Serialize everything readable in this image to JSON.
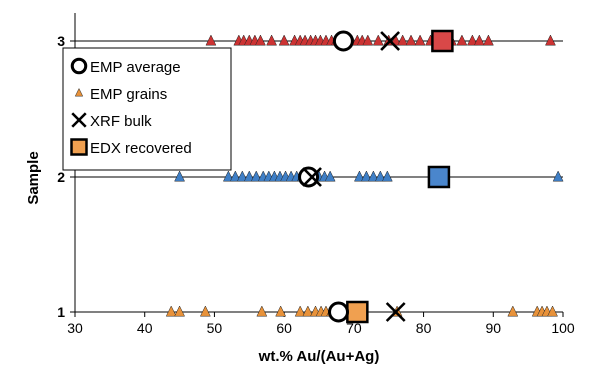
{
  "chart_data": {
    "type": "scatter",
    "xlabel": "wt.% Au/(Au+Ag)",
    "ylabel": "Sample",
    "xlim": [
      30,
      100
    ],
    "xticks": [
      "30",
      "40",
      "50",
      "60",
      "70",
      "80",
      "90",
      "100"
    ],
    "yticks": [
      "1",
      "2",
      "3"
    ],
    "grid": "horizontal",
    "legend_position": "top-left",
    "series": [
      {
        "name": "EMP average",
        "marker": "circle",
        "color": "#000000",
        "points": [
          [
            68.5,
            3
          ],
          [
            63.5,
            2
          ],
          [
            67.8,
            1
          ]
        ]
      },
      {
        "name": "EMP grains",
        "marker": "triangle",
        "colors": {
          "1": "#e8923a",
          "2": "#3f7fc6",
          "3": "#cc3333"
        },
        "points": [
          [
            49.5,
            3
          ],
          [
            53.5,
            3
          ],
          [
            54.2,
            3
          ],
          [
            55,
            3
          ],
          [
            55.8,
            3
          ],
          [
            56.6,
            3
          ],
          [
            58.2,
            3
          ],
          [
            60,
            3
          ],
          [
            61.5,
            3
          ],
          [
            62.3,
            3
          ],
          [
            63,
            3
          ],
          [
            63.8,
            3
          ],
          [
            64.5,
            3
          ],
          [
            65.2,
            3
          ],
          [
            66,
            3
          ],
          [
            66.8,
            3
          ],
          [
            67.5,
            3
          ],
          [
            68.2,
            3
          ],
          [
            69,
            3
          ],
          [
            69.7,
            3
          ],
          [
            70.5,
            3
          ],
          [
            71.2,
            3
          ],
          [
            72,
            3
          ],
          [
            73.5,
            3
          ],
          [
            75,
            3
          ],
          [
            76,
            3
          ],
          [
            77,
            3
          ],
          [
            78.2,
            3
          ],
          [
            79.5,
            3
          ],
          [
            81,
            3
          ],
          [
            82.5,
            3
          ],
          [
            84,
            3
          ],
          [
            85.5,
            3
          ],
          [
            87,
            3
          ],
          [
            88,
            3
          ],
          [
            89.3,
            3
          ],
          [
            98.2,
            3
          ],
          [
            45,
            2
          ],
          [
            52,
            2
          ],
          [
            53,
            2
          ],
          [
            54,
            2
          ],
          [
            55,
            2
          ],
          [
            56,
            2
          ],
          [
            57,
            2
          ],
          [
            57.8,
            2
          ],
          [
            58.6,
            2
          ],
          [
            59.4,
            2
          ],
          [
            60.2,
            2
          ],
          [
            61,
            2
          ],
          [
            61.8,
            2
          ],
          [
            62.6,
            2
          ],
          [
            63.4,
            2
          ],
          [
            64.2,
            2
          ],
          [
            65,
            2
          ],
          [
            65.8,
            2
          ],
          [
            66.6,
            2
          ],
          [
            70.8,
            2
          ],
          [
            71.8,
            2
          ],
          [
            72.8,
            2
          ],
          [
            73.8,
            2
          ],
          [
            74.8,
            2
          ],
          [
            99.3,
            2
          ],
          [
            43.8,
            1
          ],
          [
            45,
            1
          ],
          [
            48.7,
            1
          ],
          [
            56.8,
            1
          ],
          [
            59.5,
            1
          ],
          [
            62.3,
            1
          ],
          [
            63.4,
            1
          ],
          [
            64.5,
            1
          ],
          [
            65.3,
            1
          ],
          [
            66,
            1
          ],
          [
            66.8,
            1
          ],
          [
            67.5,
            1
          ],
          [
            68.2,
            1
          ],
          [
            69,
            1
          ],
          [
            69.8,
            1
          ],
          [
            71.2,
            1
          ],
          [
            76.2,
            1
          ],
          [
            92.8,
            1
          ],
          [
            96.3,
            1
          ],
          [
            97,
            1
          ],
          [
            97.7,
            1
          ],
          [
            98.5,
            1
          ]
        ]
      },
      {
        "name": "XRF bulk",
        "marker": "cross",
        "color": "#000000",
        "points": [
          [
            75.2,
            3
          ],
          [
            64,
            2
          ],
          [
            76,
            1
          ]
        ]
      },
      {
        "name": "EDX recovered",
        "marker": "square",
        "colors": {
          "1": "#f0a050",
          "2": "#4a86cc",
          "3": "#d94848"
        },
        "points": [
          [
            82.7,
            3
          ],
          [
            82.2,
            2
          ],
          [
            70.5,
            1
          ]
        ]
      }
    ]
  }
}
